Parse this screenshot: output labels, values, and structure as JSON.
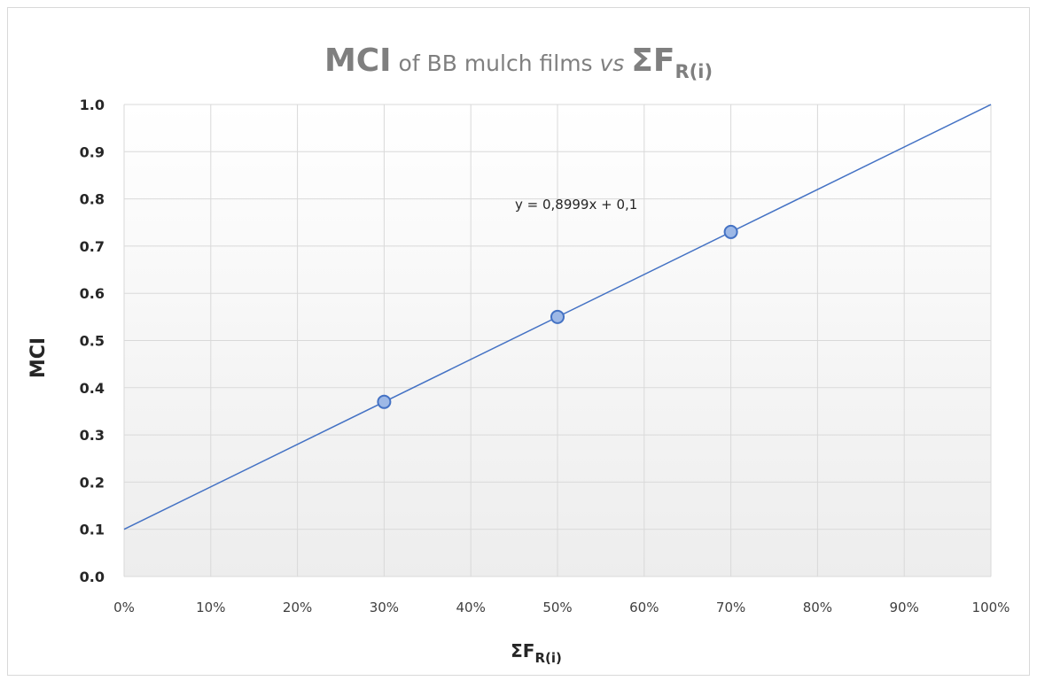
{
  "chart_data": {
    "type": "scatter",
    "title": {
      "bold_part": "MCI",
      "normal_part": " of BB mulch films ",
      "italic_part": "vs",
      "symbol_main": "ΣF",
      "symbol_sub": "R(i)"
    },
    "xlabel": {
      "main": "ΣF",
      "sub": "R(i)"
    },
    "ylabel": "MCI",
    "xlim": [
      0,
      1
    ],
    "ylim": [
      0,
      1
    ],
    "x_ticks": [
      "0%",
      "10%",
      "20%",
      "30%",
      "40%",
      "50%",
      "60%",
      "70%",
      "80%",
      "90%",
      "100%"
    ],
    "y_ticks": [
      "0.0",
      "0.1",
      "0.2",
      "0.3",
      "0.4",
      "0.5",
      "0.6",
      "0.7",
      "0.8",
      "0.9",
      "1.0"
    ],
    "grid": true,
    "series": [
      {
        "points": [
          {
            "x": 0.3,
            "y": 0.37
          },
          {
            "x": 0.5,
            "y": 0.55
          },
          {
            "x": 0.7,
            "y": 0.73
          }
        ],
        "color": "#4472c4"
      }
    ],
    "trendline": {
      "slope": 0.8999,
      "intercept": 0.1,
      "equation_label": "y = 0,8999x + 0,1",
      "color": "#4472c4"
    },
    "colors": {
      "plot_bg_top": "#ffffff",
      "plot_bg_bottom": "#ededed",
      "grid": "#d9d9d9",
      "marker_fill": "#9db8e6",
      "marker_stroke": "#4472c4"
    }
  }
}
